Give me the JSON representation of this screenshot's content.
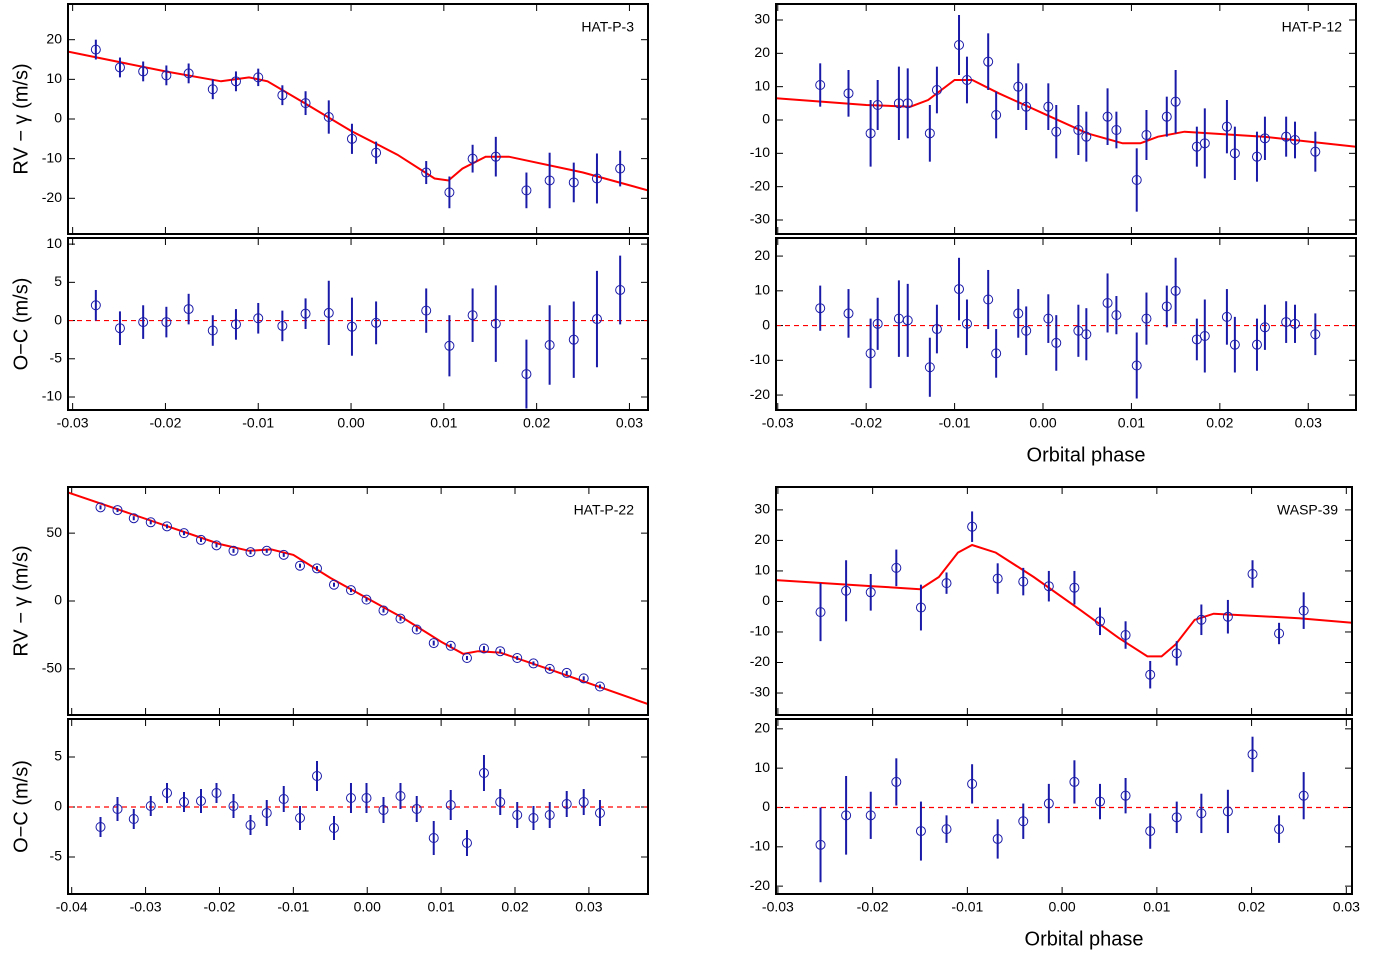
{
  "chart_data": [
    {
      "type": "scatter",
      "title": "HAT-P-3",
      "y_label": "RV − γ (m/s)",
      "xlim": [
        -0.0305,
        0.032
      ],
      "ylim": [
        -29,
        29
      ],
      "yticks": [
        -20,
        -10,
        0,
        10,
        20
      ],
      "color": "#1a1aa8",
      "x": [
        -0.0275,
        -0.0249,
        -0.0224,
        -0.0199,
        -0.0175,
        -0.0149,
        -0.0124,
        -0.01,
        -0.0074,
        -0.0049,
        -0.0024,
        0.0001,
        0.0027,
        0.0081,
        0.0106,
        0.0131,
        0.0156,
        0.0189,
        0.0214,
        0.024,
        0.0265,
        0.029
      ],
      "values": [
        17.5,
        13,
        12,
        11,
        11.5,
        7.5,
        9.5,
        10.5,
        6,
        4,
        0.5,
        -5,
        -8.5,
        -13.5,
        -18.5,
        -10,
        -9.5,
        -18,
        -15.5,
        -16,
        -15,
        -12.5
      ],
      "errors": [
        2.5,
        2.5,
        2.5,
        2.5,
        2.5,
        2.5,
        2.5,
        2.2,
        2.5,
        3,
        4.2,
        3.8,
        2.8,
        2.9,
        4,
        3.5,
        5,
        4.5,
        7,
        5,
        6.3,
        4.5
      ],
      "model": {
        "color": "#ff0000",
        "x": [
          -0.0305,
          -0.02,
          -0.014,
          -0.011,
          -0.009,
          -0.005,
          0,
          0.005,
          0.009,
          0.0105,
          0.012,
          0.0145,
          0.017,
          0.025,
          0.032
        ],
        "values": [
          17,
          12,
          9.5,
          10.5,
          9.5,
          4,
          -3,
          -9,
          -15,
          -15.5,
          -12.5,
          -9.5,
          -9.5,
          -13.5,
          -18
        ]
      }
    },
    {
      "type": "scatter",
      "y_label": "O−C (m/s)",
      "xlim": [
        -0.0305,
        0.032
      ],
      "ylim": [
        -11.7,
        10.8
      ],
      "yticks": [
        -10,
        -5,
        0,
        5,
        10
      ],
      "xticks": [
        -0.03,
        -0.02,
        -0.01,
        {
          "value": 0,
          "label": "0.00"
        },
        0.01,
        0.02,
        0.03
      ],
      "color": "#1a1aa8",
      "hline": 0,
      "hline_color": "#ff0000",
      "x": [
        -0.0275,
        -0.0249,
        -0.0224,
        -0.0199,
        -0.0175,
        -0.0149,
        -0.0124,
        -0.01,
        -0.0074,
        -0.0049,
        -0.0024,
        0.0001,
        0.0027,
        0.0081,
        0.0106,
        0.0131,
        0.0156,
        0.0189,
        0.0214,
        0.024,
        0.0265,
        0.029
      ],
      "values": [
        2,
        -1,
        -0.2,
        -0.2,
        1.5,
        -1.3,
        -0.5,
        0.3,
        -0.7,
        0.9,
        1,
        -0.8,
        -0.3,
        1.3,
        -3.3,
        0.7,
        -0.4,
        -7,
        -3.2,
        -2.5,
        0.2,
        4
      ],
      "errors": [
        2,
        2.2,
        2.2,
        2,
        2,
        2,
        2,
        2,
        2,
        2,
        4.2,
        3.8,
        2.8,
        2.9,
        4,
        3.5,
        5,
        4.5,
        5.2,
        5,
        6.3,
        4.5
      ]
    },
    {
      "type": "scatter",
      "title": "HAT-P-12",
      "xlim": [
        -0.0302,
        0.0354
      ],
      "ylim": [
        -34.2,
        34.8
      ],
      "yticks": [
        -30,
        -20,
        -10,
        0,
        10,
        20,
        30
      ],
      "color": "#1a1aa8",
      "x": [
        -0.0252,
        -0.022,
        -0.0195,
        -0.0187,
        -0.0163,
        -0.0153,
        -0.0128,
        -0.012,
        -0.0095,
        -0.0086,
        -0.0062,
        -0.0053,
        -0.0028,
        -0.0019,
        0.0006,
        0.0015,
        0.004,
        0.0049,
        0.0073,
        0.0083,
        0.0106,
        0.0117,
        0.014,
        0.015,
        0.0174,
        0.0183,
        0.0208,
        0.0217,
        0.0242,
        0.0251,
        0.0275,
        0.0285,
        0.0308
      ],
      "values": [
        10.5,
        8,
        -4,
        4.5,
        5,
        5,
        -4,
        9,
        22.5,
        12,
        17.5,
        1.5,
        10,
        4,
        4,
        -3.5,
        -3,
        -5,
        1,
        -3,
        -18,
        -4.5,
        1,
        5.5,
        -8,
        -7,
        -2,
        -10,
        -11,
        -5.5,
        -5,
        -6,
        -9.5
      ],
      "errors": [
        6.5,
        7,
        10,
        7.5,
        11,
        10.5,
        8.5,
        7,
        9,
        7,
        8.5,
        7,
        7,
        7,
        7,
        8,
        7.5,
        7.5,
        8.5,
        5.5,
        9.5,
        7.5,
        6,
        9.5,
        6,
        10.5,
        8,
        8,
        7.5,
        6.5,
        6,
        5.5,
        6
      ],
      "model": {
        "color": "#ff0000",
        "x": [
          -0.0302,
          -0.02,
          -0.015,
          -0.013,
          -0.01,
          -0.008,
          -0.005,
          0,
          0.005,
          0.009,
          0.011,
          0.013,
          0.016,
          0.025,
          0.0354
        ],
        "values": [
          6.5,
          4.5,
          4,
          6,
          12,
          12,
          8,
          2,
          -4,
          -7,
          -7,
          -5,
          -3.5,
          -5,
          -8
        ]
      }
    },
    {
      "type": "scatter",
      "x_label": "Orbital phase",
      "xlim": [
        -0.0302,
        0.0354
      ],
      "ylim": [
        -24.3,
        25.2
      ],
      "yticks": [
        -20,
        -10,
        0,
        10,
        20
      ],
      "xticks": [
        -0.03,
        -0.02,
        -0.01,
        {
          "value": 0,
          "label": "0.00"
        },
        0.01,
        0.02,
        0.03
      ],
      "color": "#1a1aa8",
      "hline": 0,
      "hline_color": "#ff0000",
      "x": [
        -0.0252,
        -0.022,
        -0.0195,
        -0.0187,
        -0.0163,
        -0.0153,
        -0.0128,
        -0.012,
        -0.0095,
        -0.0086,
        -0.0062,
        -0.0053,
        -0.0028,
        -0.0019,
        0.0006,
        0.0015,
        0.004,
        0.0049,
        0.0073,
        0.0083,
        0.0106,
        0.0117,
        0.014,
        0.015,
        0.0174,
        0.0183,
        0.0208,
        0.0217,
        0.0242,
        0.0251,
        0.0275,
        0.0285,
        0.0308
      ],
      "values": [
        5,
        3.5,
        -8,
        0.5,
        2,
        1.5,
        -12,
        -1,
        10.5,
        0.5,
        7.5,
        -8,
        3.5,
        -1.5,
        2,
        -5,
        -1.5,
        -2.5,
        6.5,
        3,
        -11.5,
        2,
        5.5,
        10,
        -4,
        -3,
        2.5,
        -5.5,
        -5.5,
        -0.5,
        1,
        0.5,
        -2.5
      ],
      "errors": [
        6.5,
        7,
        10,
        7.5,
        11,
        10.5,
        8.5,
        7,
        9,
        7,
        8.5,
        7,
        7,
        7,
        7,
        8,
        7.5,
        7.5,
        8.5,
        5.5,
        9.5,
        7.5,
        6,
        9.5,
        6,
        10.5,
        8,
        8,
        7.5,
        6.5,
        6,
        5.5,
        6
      ]
    },
    {
      "type": "scatter",
      "title": "HAT-P-22",
      "y_label": "RV − γ (m/s)",
      "xlim": [
        -0.0405,
        0.038
      ],
      "ylim": [
        -84,
        84
      ],
      "yticks": [
        -50,
        0,
        50
      ],
      "color": "#1a1aa8",
      "x": [
        -0.0361,
        -0.0338,
        -0.0316,
        -0.0293,
        -0.0271,
        -0.0248,
        -0.0225,
        -0.0204,
        -0.0181,
        -0.0158,
        -0.0136,
        -0.0113,
        -0.0091,
        -0.0068,
        -0.0045,
        -0.0022,
        -0.0001,
        0.0022,
        0.0045,
        0.0067,
        0.009,
        0.0113,
        0.0135,
        0.0158,
        0.018,
        0.0203,
        0.0225,
        0.0247,
        0.027,
        0.0293,
        0.0315
      ],
      "values": [
        69,
        67,
        61,
        58,
        55,
        50,
        45,
        41,
        37,
        36,
        37,
        34,
        26,
        24,
        12,
        8,
        1,
        -7,
        -13,
        -21,
        -31,
        -33,
        -42,
        -35,
        -37,
        -42,
        -46,
        -50,
        -53,
        -57,
        -63
      ],
      "errors": [
        1.5,
        1.5,
        1.5,
        1.5,
        1.5,
        1.5,
        1.5,
        1.5,
        1.5,
        1.5,
        1.5,
        1.5,
        1.5,
        1.8,
        1.5,
        1.5,
        1.5,
        1.5,
        1.5,
        1.5,
        1.8,
        1.5,
        1.5,
        1.8,
        1.5,
        1.5,
        1.5,
        1.5,
        1.5,
        1.5,
        1.5
      ],
      "model": {
        "color": "#ff0000",
        "x": [
          -0.0405,
          -0.02,
          -0.016,
          -0.013,
          -0.01,
          -0.005,
          0,
          0.005,
          0.01,
          0.013,
          0.015,
          0.018,
          0.025,
          0.038
        ],
        "values": [
          80,
          42,
          37,
          38,
          34,
          17,
          2,
          -13,
          -30,
          -39,
          -37,
          -38,
          -51,
          -76
        ]
      }
    },
    {
      "type": "scatter",
      "y_label": "O−C (m/s)",
      "xlim": [
        -0.0405,
        0.038
      ],
      "ylim": [
        -8.7,
        8.8
      ],
      "yticks": [
        -5,
        0,
        5
      ],
      "xticks": [
        -0.04,
        -0.03,
        -0.02,
        -0.01,
        {
          "value": 0,
          "label": "0.00"
        },
        0.01,
        0.02,
        0.03
      ],
      "color": "#1a1aa8",
      "hline": 0,
      "hline_color": "#ff0000",
      "x": [
        -0.0361,
        -0.0338,
        -0.0316,
        -0.0293,
        -0.0271,
        -0.0248,
        -0.0225,
        -0.0204,
        -0.0181,
        -0.0158,
        -0.0136,
        -0.0113,
        -0.0091,
        -0.0068,
        -0.0045,
        -0.0022,
        -0.0001,
        0.0022,
        0.0045,
        0.0067,
        0.009,
        0.0113,
        0.0135,
        0.0158,
        0.018,
        0.0203,
        0.0225,
        0.0247,
        0.027,
        0.0293,
        0.0315
      ],
      "values": [
        -2,
        -0.2,
        -1.2,
        0.1,
        1.4,
        0.5,
        0.6,
        1.4,
        0.1,
        -1.8,
        -0.6,
        0.8,
        -1.1,
        3.1,
        -2.1,
        0.9,
        0.9,
        -0.3,
        1.1,
        -0.2,
        -3.1,
        0.2,
        -3.6,
        3.4,
        0.5,
        -0.8,
        -1.1,
        -0.8,
        0.3,
        0.5,
        -0.6
      ],
      "errors": [
        1,
        1.2,
        1,
        1,
        1,
        1,
        1.2,
        1,
        1.2,
        1,
        1.3,
        1.3,
        1.2,
        1.5,
        1.2,
        1.5,
        1.5,
        1.3,
        1.3,
        1.3,
        1.7,
        1.5,
        1.3,
        1.8,
        1.3,
        1.3,
        1.2,
        1.3,
        1.3,
        1.3,
        1.3
      ]
    },
    {
      "type": "scatter",
      "title": "WASP-39",
      "xlim": [
        -0.0302,
        0.0306
      ],
      "ylim": [
        -37.2,
        37.5
      ],
      "yticks": [
        -30,
        -20,
        -10,
        0,
        10,
        20,
        30
      ],
      "color": "#1a1aa8",
      "x": [
        -0.0255,
        -0.0228,
        -0.0202,
        -0.0175,
        -0.0149,
        -0.0122,
        -0.0095,
        -0.0068,
        -0.0041,
        -0.0014,
        0.0013,
        0.004,
        0.0067,
        0.0093,
        0.0121,
        0.0147,
        0.0175,
        0.0201,
        0.0229,
        0.0255
      ],
      "values": [
        -3.5,
        3.5,
        3,
        11,
        -2,
        6,
        24.5,
        7.5,
        6.5,
        5,
        4.5,
        -6.5,
        -11,
        -24,
        -17,
        -6,
        -5,
        9,
        -10.5,
        -3
      ],
      "errors": [
        9.5,
        10,
        6,
        6,
        7.5,
        3.5,
        5,
        5,
        4.5,
        5,
        5.5,
        4.5,
        4.5,
        4.5,
        4,
        5,
        5.5,
        4.5,
        3.5,
        6
      ],
      "model": {
        "color": "#ff0000",
        "x": [
          -0.0302,
          -0.02,
          -0.015,
          -0.013,
          -0.011,
          -0.0095,
          -0.007,
          -0.003,
          0.002,
          0.006,
          0.009,
          0.0105,
          0.012,
          0.014,
          0.016,
          0.025,
          0.0306
        ],
        "values": [
          7,
          5,
          4,
          8,
          16,
          18.5,
          16,
          8,
          -3,
          -12,
          -18,
          -18,
          -14,
          -6,
          -4,
          -5.5,
          -7
        ]
      }
    },
    {
      "type": "scatter",
      "x_label": "Orbital phase",
      "xlim": [
        -0.0302,
        0.0306
      ],
      "ylim": [
        -22,
        22.5
      ],
      "yticks": [
        -20,
        -10,
        0,
        10,
        20
      ],
      "xticks": [
        -0.03,
        -0.02,
        -0.01,
        {
          "value": 0,
          "label": "0.00"
        },
        0.01,
        0.02,
        0.03
      ],
      "color": "#1a1aa8",
      "hline": 0,
      "hline_color": "#ff0000",
      "x": [
        -0.0255,
        -0.0228,
        -0.0202,
        -0.0175,
        -0.0149,
        -0.0122,
        -0.0095,
        -0.0068,
        -0.0041,
        -0.0014,
        0.0013,
        0.004,
        0.0067,
        0.0093,
        0.0121,
        0.0147,
        0.0175,
        0.0201,
        0.0229,
        0.0255
      ],
      "values": [
        -9.5,
        -2,
        -2,
        6.5,
        -6,
        -5.5,
        6,
        -8,
        -3.5,
        1,
        6.5,
        1.5,
        3,
        -6,
        -2.5,
        -1.5,
        -1,
        13.5,
        -5.5,
        3
      ],
      "errors": [
        9.5,
        10,
        6,
        6,
        7.5,
        3.5,
        5,
        5,
        4.5,
        5,
        5.5,
        4.5,
        4.5,
        4.5,
        4,
        5,
        5.5,
        4.5,
        3.5,
        6
      ]
    }
  ]
}
